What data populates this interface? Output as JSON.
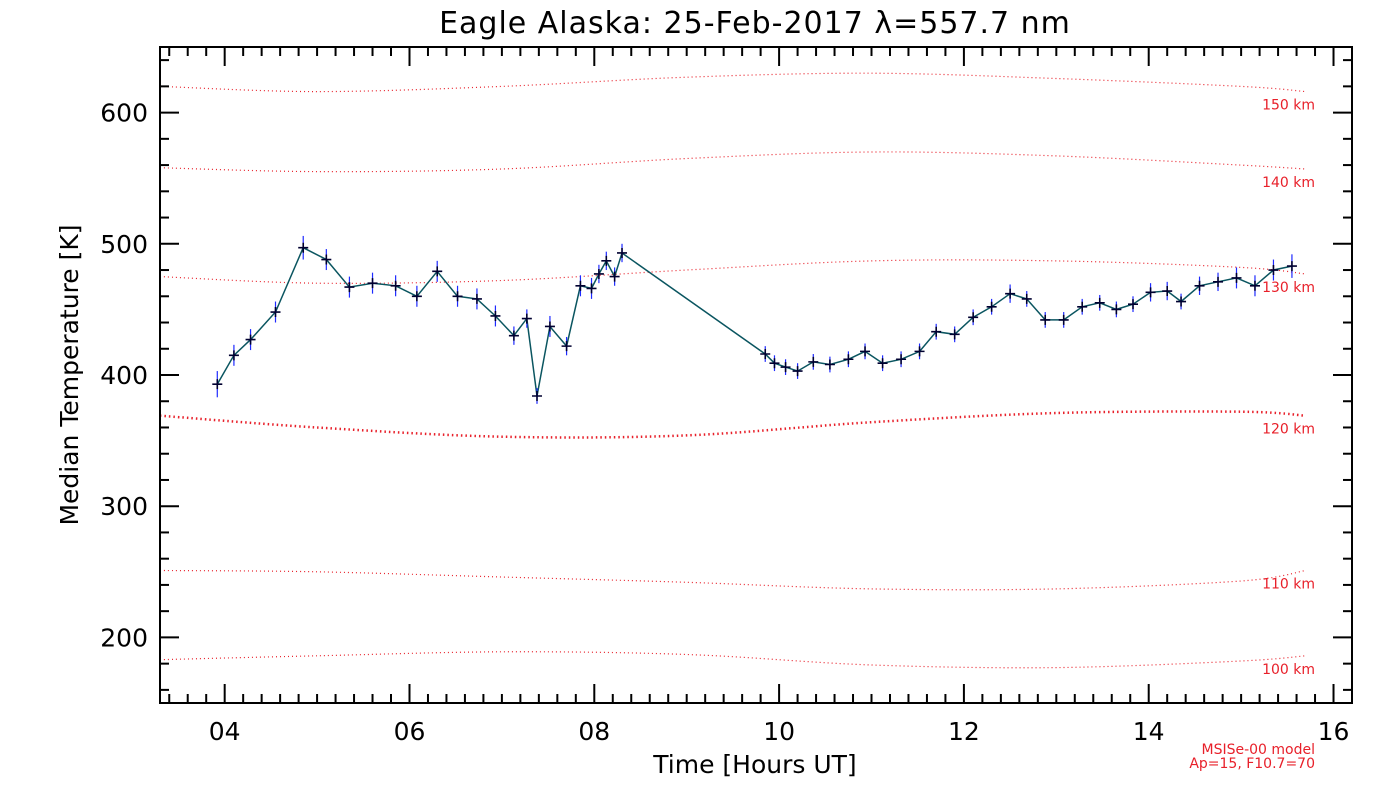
{
  "chart_data": {
    "type": "line",
    "title": "Eagle Alaska: 25-Feb-2017 λ=557.7 nm",
    "xlabel": "Time [Hours UT]",
    "ylabel": "Median Temperature [K]",
    "xlim": [
      3.3,
      16.2
    ],
    "ylim": [
      150,
      650
    ],
    "xticks": [
      {
        "value": 4,
        "label": "04"
      },
      {
        "value": 6,
        "label": "06"
      },
      {
        "value": 8,
        "label": "08"
      },
      {
        "value": 10,
        "label": "10"
      },
      {
        "value": 12,
        "label": "12"
      },
      {
        "value": 14,
        "label": "14"
      },
      {
        "value": 16,
        "label": "16"
      }
    ],
    "yticks": [
      {
        "value": 200,
        "label": "200"
      },
      {
        "value": 300,
        "label": "300"
      },
      {
        "value": 400,
        "label": "400"
      },
      {
        "value": 500,
        "label": "500"
      },
      {
        "value": 600,
        "label": "600"
      }
    ],
    "x_minor_step": 0.2,
    "y_minor_step": 20,
    "grid": false,
    "observed": {
      "color": "#0a5560",
      "error_color": "#1e2aff",
      "points": [
        [
          3.92,
          393,
          10
        ],
        [
          4.1,
          415,
          8
        ],
        [
          4.28,
          427,
          8
        ],
        [
          4.55,
          448,
          8
        ],
        [
          4.85,
          497,
          9
        ],
        [
          5.1,
          488,
          8
        ],
        [
          5.35,
          467,
          8
        ],
        [
          5.6,
          470,
          8
        ],
        [
          5.85,
          468,
          8
        ],
        [
          6.08,
          460,
          8
        ],
        [
          6.3,
          479,
          8
        ],
        [
          6.52,
          460,
          8
        ],
        [
          6.73,
          458,
          8
        ],
        [
          6.93,
          445,
          8
        ],
        [
          7.13,
          430,
          7
        ],
        [
          7.27,
          443,
          7
        ],
        [
          7.38,
          384,
          6
        ],
        [
          7.52,
          437,
          8
        ],
        [
          7.7,
          422,
          7
        ],
        [
          7.85,
          468,
          8
        ],
        [
          7.97,
          466,
          8
        ],
        [
          8.05,
          477,
          7
        ],
        [
          8.13,
          487,
          7
        ],
        [
          8.22,
          475,
          7
        ],
        [
          8.3,
          493,
          7
        ],
        [
          9.85,
          416,
          6
        ],
        [
          9.95,
          409,
          6
        ],
        [
          10.07,
          406,
          6
        ],
        [
          10.2,
          403,
          6
        ],
        [
          10.37,
          410,
          6
        ],
        [
          10.55,
          408,
          6
        ],
        [
          10.75,
          412,
          6
        ],
        [
          10.93,
          418,
          6
        ],
        [
          11.12,
          409,
          6
        ],
        [
          11.32,
          412,
          6
        ],
        [
          11.52,
          418,
          6
        ],
        [
          11.7,
          433,
          6
        ],
        [
          11.9,
          431,
          6
        ],
        [
          12.1,
          444,
          6
        ],
        [
          12.3,
          452,
          6
        ],
        [
          12.5,
          462,
          7
        ],
        [
          12.68,
          458,
          6
        ],
        [
          12.88,
          442,
          6
        ],
        [
          13.08,
          442,
          6
        ],
        [
          13.28,
          452,
          6
        ],
        [
          13.47,
          455,
          6
        ],
        [
          13.65,
          450,
          6
        ],
        [
          13.83,
          454,
          6
        ],
        [
          14.02,
          463,
          7
        ],
        [
          14.2,
          464,
          7
        ],
        [
          14.35,
          456,
          6
        ],
        [
          14.55,
          468,
          7
        ],
        [
          14.75,
          471,
          7
        ],
        [
          14.95,
          474,
          8
        ],
        [
          15.15,
          468,
          8
        ],
        [
          15.35,
          480,
          8
        ],
        [
          15.55,
          483,
          9
        ]
      ]
    },
    "model": {
      "color": "#e8202a",
      "note_line1": "MSISe-00 model",
      "note_line2": "Ap=15, F10.7=70",
      "curves": [
        {
          "altitude": "100 km",
          "emphasis": false,
          "points": [
            [
              3.3,
              183
            ],
            [
              5,
              186
            ],
            [
              7,
              189
            ],
            [
              9,
              187
            ],
            [
              11,
              179
            ],
            [
              13,
              177
            ],
            [
              15,
              182
            ],
            [
              15.7,
              186
            ]
          ]
        },
        {
          "altitude": "110 km",
          "emphasis": false,
          "points": [
            [
              3.3,
              251
            ],
            [
              5,
              250
            ],
            [
              7,
              246
            ],
            [
              9,
              242
            ],
            [
              11,
              237
            ],
            [
              13,
              237
            ],
            [
              15,
              243
            ],
            [
              15.7,
              251
            ]
          ]
        },
        {
          "altitude": "120 km",
          "emphasis": true,
          "points": [
            [
              3.3,
              369
            ],
            [
              5,
              360
            ],
            [
              7,
              353
            ],
            [
              9,
              354
            ],
            [
              11,
              364
            ],
            [
              13,
              371
            ],
            [
              15,
              372
            ],
            [
              15.7,
              369
            ]
          ]
        },
        {
          "altitude": "130 km",
          "emphasis": false,
          "points": [
            [
              3.3,
              475
            ],
            [
              5,
              470
            ],
            [
              7,
              472
            ],
            [
              9,
              480
            ],
            [
              11,
              487
            ],
            [
              13,
              487
            ],
            [
              15,
              482
            ],
            [
              15.7,
              477
            ]
          ]
        },
        {
          "altitude": "140 km",
          "emphasis": false,
          "points": [
            [
              3.3,
              558
            ],
            [
              5,
              555
            ],
            [
              7,
              557
            ],
            [
              9,
              565
            ],
            [
              11,
              570
            ],
            [
              13,
              567
            ],
            [
              15,
              560
            ],
            [
              15.7,
              557
            ]
          ]
        },
        {
          "altitude": "150 km",
          "emphasis": false,
          "points": [
            [
              3.3,
              620
            ],
            [
              5,
              616
            ],
            [
              7,
              620
            ],
            [
              9,
              627
            ],
            [
              11,
              630
            ],
            [
              13,
              626
            ],
            [
              15,
              620
            ],
            [
              15.7,
              616
            ]
          ]
        }
      ]
    }
  }
}
